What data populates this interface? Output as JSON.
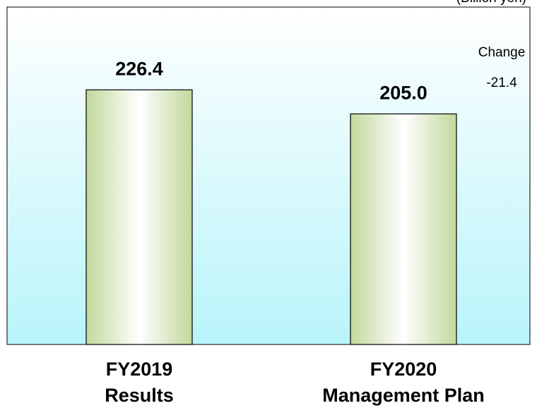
{
  "chart_data": {
    "type": "bar",
    "unit": "(Billion yen)",
    "categories": [
      [
        "FY2019",
        "Results"
      ],
      [
        "FY2020",
        "Management Plan"
      ]
    ],
    "values": [
      226.4,
      205.0
    ],
    "value_labels": [
      "226.4",
      "205.0"
    ],
    "annotations": [
      "Change",
      "-21.4"
    ],
    "ylim": [
      0,
      300
    ]
  }
}
